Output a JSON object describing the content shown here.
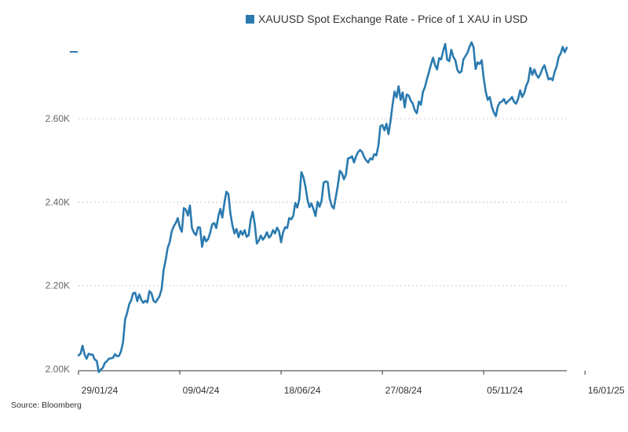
{
  "colors": {
    "series": "#2a7aaf",
    "grid": "#cccccc",
    "axis": "#333333"
  },
  "source": "Source: Bloomberg",
  "chart_data": {
    "type": "line",
    "title": "",
    "xlabel": "",
    "ylabel": "",
    "ylim": [
      2000,
      2760
    ],
    "grid": true,
    "legend_position": "top-center",
    "yticks": [
      {
        "value": 2000,
        "label": "2.00K"
      },
      {
        "value": 2200,
        "label": "2.20K"
      },
      {
        "value": 2400,
        "label": "2.40K"
      },
      {
        "value": 2600,
        "label": "2.60K"
      }
    ],
    "xticks": [
      {
        "index": 0,
        "label": "29/01/24"
      },
      {
        "index": 50,
        "label": "09/04/24"
      },
      {
        "index": 100,
        "label": "18/06/24"
      },
      {
        "index": 150,
        "label": "27/08/24"
      },
      {
        "index": 200,
        "label": "05/11/24"
      },
      {
        "index": 250,
        "label": "16/01/25"
      }
    ],
    "series": [
      {
        "name": "XAUUSD Spot Exchange Rate - Price of 1 XAU in USD",
        "values": [
          2033,
          2037,
          2056,
          2035,
          2025,
          2037,
          2035,
          2035,
          2023,
          2020,
          1993,
          1999,
          2003,
          2015,
          2019,
          2025,
          2026,
          2027,
          2036,
          2031,
          2032,
          2043,
          2065,
          2119,
          2135,
          2155,
          2165,
          2182,
          2183,
          2163,
          2179,
          2166,
          2159,
          2164,
          2160,
          2187,
          2182,
          2164,
          2160,
          2167,
          2175,
          2191,
          2237,
          2261,
          2290,
          2304,
          2330,
          2342,
          2350,
          2362,
          2340,
          2329,
          2386,
          2382,
          2368,
          2392,
          2338,
          2327,
          2321,
          2340,
          2339,
          2293,
          2318,
          2306,
          2312,
          2327,
          2347,
          2350,
          2338,
          2365,
          2384,
          2363,
          2398,
          2425,
          2419,
          2372,
          2344,
          2325,
          2336,
          2316,
          2331,
          2322,
          2333,
          2317,
          2321,
          2358,
          2377,
          2347,
          2301,
          2308,
          2320,
          2310,
          2317,
          2328,
          2315,
          2320,
          2333,
          2325,
          2339,
          2330,
          2304,
          2328,
          2340,
          2338,
          2362,
          2359,
          2367,
          2398,
          2387,
          2408,
          2472,
          2460,
          2438,
          2407,
          2388,
          2397,
          2383,
          2367,
          2401,
          2389,
          2404,
          2447,
          2450,
          2448,
          2408,
          2391,
          2385,
          2412,
          2440,
          2475,
          2470,
          2455,
          2466,
          2505,
          2506,
          2510,
          2495,
          2510,
          2520,
          2525,
          2520,
          2508,
          2500,
          2495,
          2505,
          2502,
          2515,
          2512,
          2535,
          2582,
          2585,
          2572,
          2588,
          2563,
          2594,
          2633,
          2665,
          2651,
          2678,
          2645,
          2663,
          2627,
          2658,
          2655,
          2643,
          2636,
          2620,
          2613,
          2641,
          2633,
          2664,
          2676,
          2695,
          2712,
          2730,
          2746,
          2728,
          2718,
          2745,
          2742,
          2762,
          2779,
          2741,
          2738,
          2765,
          2748,
          2740,
          2717,
          2710,
          2713,
          2742,
          2750,
          2758,
          2772,
          2783,
          2771,
          2719,
          2735,
          2731,
          2740,
          2697,
          2665,
          2645,
          2652,
          2629,
          2615,
          2606,
          2630,
          2639,
          2641,
          2647,
          2636,
          2642,
          2646,
          2652,
          2640,
          2636,
          2648,
          2668,
          2652,
          2661,
          2679,
          2690,
          2722,
          2705,
          2718,
          2705,
          2698,
          2707,
          2720,
          2728,
          2711,
          2694,
          2697,
          2692,
          2712,
          2725,
          2748,
          2756,
          2772,
          2759,
          2770
        ]
      }
    ]
  }
}
